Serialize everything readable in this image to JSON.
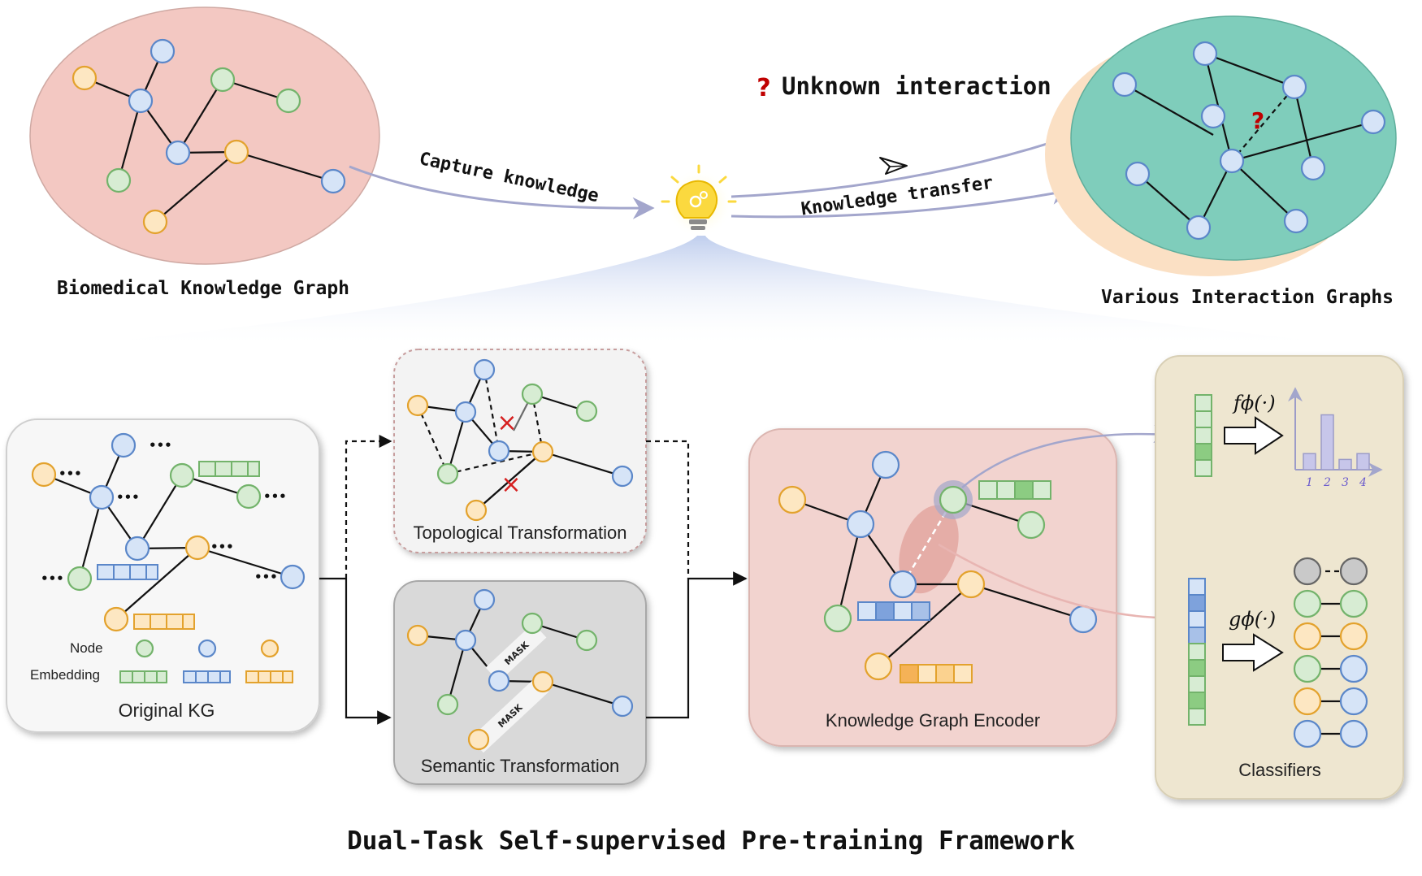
{
  "labels": {
    "biomedical_kg": "Biomedical Knowledge Graph",
    "various_graphs": "Various Interaction Graphs",
    "unknown_interaction": "Unknown interaction",
    "question_mark": "?",
    "capture_knowledge": "Capture knowledge",
    "knowledge_transfer": "Knowledge transfer",
    "original_kg": "Original KG",
    "node": "Node",
    "embedding": "Embedding",
    "topological": "Topological Transformation",
    "semantic": "Semantic Transformation",
    "encoder": "Knowledge Graph Encoder",
    "classifiers": "Classifiers",
    "f_phi": "fϕ(·)",
    "g_phi": "gϕ(·)",
    "mask": "MASK",
    "ellipsis": "•••",
    "framework_title": "Dual-Task Self-supervised Pre-training Framework"
  },
  "bar_chart": {
    "categories": [
      "1",
      "2",
      "3",
      "4"
    ],
    "values": [
      0.22,
      0.75,
      0.14,
      0.22
    ]
  },
  "colors": {
    "kg_ellipse": "#f3c8c2",
    "interaction_ellipse": "#7fcdbb",
    "interaction_back": "#fbe0c4",
    "encoder_panel": "#f2d3cf",
    "classifier_panel": "#eee6d0",
    "topo_panel": "#f3f3f3",
    "sem_panel": "#d9d9d9",
    "blue": "#5b87c9",
    "green": "#73b36b",
    "orange": "#e3a22d",
    "red": "#c00000",
    "arrow": "#a8acd0"
  },
  "icons": [
    "lightbulb-gear-icon",
    "paper-plane-icon",
    "question-mark-icon"
  ]
}
